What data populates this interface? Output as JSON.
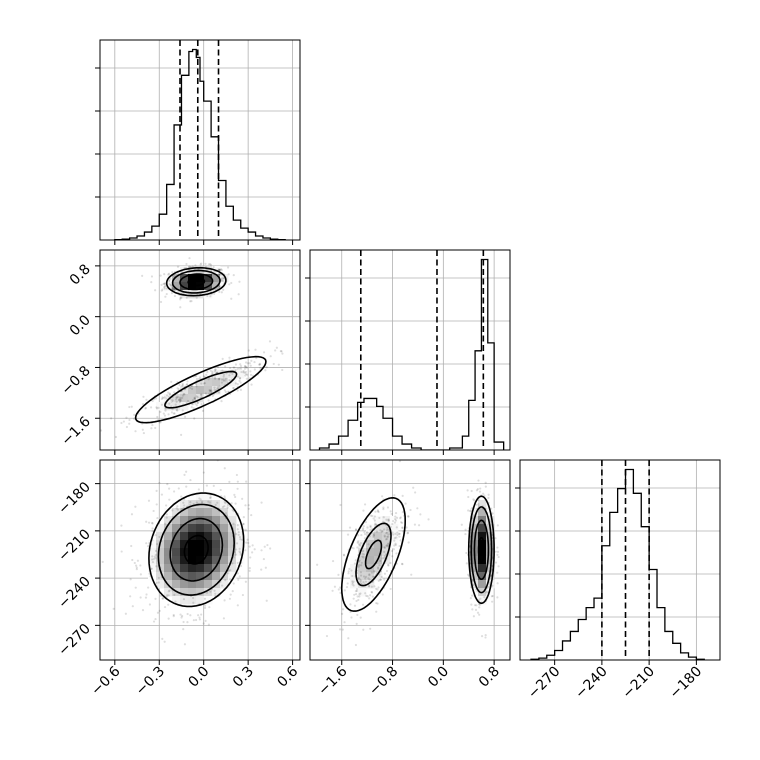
{
  "figure": {
    "style": "corner plot",
    "grid": true
  },
  "chart_data": {
    "type": "corner",
    "parameters": [
      {
        "name": "",
        "range": [
          -0.7,
          0.65
        ],
        "ticks": [
          -0.6,
          -0.3,
          0.0,
          0.3,
          0.6
        ],
        "tick_labels": [
          "−0.6",
          "−0.3",
          "0.0",
          "0.3",
          "0.6"
        ],
        "quantiles": [
          -0.16,
          -0.04,
          0.1
        ]
      },
      {
        "name": "",
        "range": [
          -2.1,
          1.05
        ],
        "ticks": [
          -1.6,
          -0.8,
          0.0,
          0.8
        ],
        "tick_labels": [
          "−1.6",
          "−0.8",
          "0.0",
          "0.8"
        ],
        "quantiles": [
          -1.3,
          -0.1,
          0.63
        ]
      },
      {
        "name": "",
        "range": [
          -292,
          -165
        ],
        "ticks": [
          -270,
          -240,
          -210,
          -180
        ],
        "tick_labels": [
          "−270",
          "−240",
          "−210",
          "−180"
        ],
        "quantiles": [
          -240,
          -225,
          -210
        ]
      }
    ],
    "histograms": [
      {
        "param": 0,
        "bin_edges": [
          -0.6,
          -0.55,
          -0.5,
          -0.45,
          -0.4,
          -0.35,
          -0.3,
          -0.25,
          -0.2,
          -0.15,
          -0.1,
          -0.075,
          -0.05,
          -0.025,
          0.0,
          0.05,
          0.1,
          0.15,
          0.2,
          0.25,
          0.3,
          0.35,
          0.4,
          0.45,
          0.5,
          0.55
        ],
        "counts": [
          0.2,
          0.4,
          1,
          2,
          4,
          7,
          13,
          28,
          58,
          83,
          95,
          96,
          92,
          80,
          70,
          52,
          30,
          17,
          10,
          6,
          4,
          2,
          1,
          0.4,
          0.2
        ]
      },
      {
        "param": 1,
        "bin_edges": [
          -1.95,
          -1.8,
          -1.65,
          -1.5,
          -1.35,
          -1.25,
          -1.15,
          -1.05,
          -0.95,
          -0.8,
          -0.65,
          -0.5,
          -0.35,
          -0.2,
          -0.05,
          0.1,
          0.3,
          0.4,
          0.5,
          0.6,
          0.7,
          0.8,
          0.95
        ],
        "counts": [
          1,
          3,
          7,
          15,
          24,
          26,
          26,
          22,
          16,
          7,
          3,
          1,
          0,
          0,
          0,
          1,
          7,
          25,
          50,
          96,
          54,
          4
        ]
      },
      {
        "param": 2,
        "bin_edges": [
          -285,
          -280,
          -275,
          -270,
          -265,
          -260,
          -255,
          -250,
          -245,
          -240,
          -235,
          -230,
          -225,
          -220,
          -215,
          -210,
          -205,
          -200,
          -195,
          -190,
          -185,
          -180,
          -175
        ],
        "counts": [
          0.3,
          0.8,
          2,
          4,
          8,
          12,
          17,
          22,
          26,
          48,
          62,
          72,
          80,
          70,
          56,
          38,
          22,
          12,
          7,
          3,
          1.2,
          0.3
        ]
      }
    ],
    "joint_distributions": [
      {
        "x_param": 0,
        "y_param": 1,
        "modes": [
          {
            "center": [
              -0.05,
              0.55
            ],
            "sd": [
              0.1,
              0.11
            ],
            "corr": 0.1,
            "weight": 0.55,
            "contour_radii": [
              0.55,
              1.1,
              1.6,
              2.0
            ]
          },
          {
            "center": [
              -0.02,
              -1.15
            ],
            "sd": [
              0.22,
              0.26
            ],
            "corr": 0.85,
            "weight": 0.45,
            "contour_radii": [
              1.1,
              2.0
            ]
          }
        ]
      },
      {
        "x_param": 0,
        "y_param": 2,
        "modes": [
          {
            "center": [
              -0.05,
              -222
            ],
            "sd": [
              0.16,
              18
            ],
            "corr": 0.15,
            "weight": 1.0,
            "contour_radii": [
              0.5,
              1.1,
              1.6,
              2.0
            ]
          }
        ]
      },
      {
        "x_param": 1,
        "y_param": 2,
        "modes": [
          {
            "center": [
              -1.1,
              -225
            ],
            "sd": [
              0.25,
              18
            ],
            "corr": 0.6,
            "weight": 0.45,
            "contour_radii": [
              0.5,
              1.1,
              2.0
            ]
          },
          {
            "center": [
              0.6,
              -222
            ],
            "sd": [
              0.1,
              17
            ],
            "corr": 0.0,
            "weight": 0.55,
            "contour_radii": [
              0.45,
              1.1,
              1.6,
              2.0
            ]
          }
        ]
      }
    ]
  }
}
